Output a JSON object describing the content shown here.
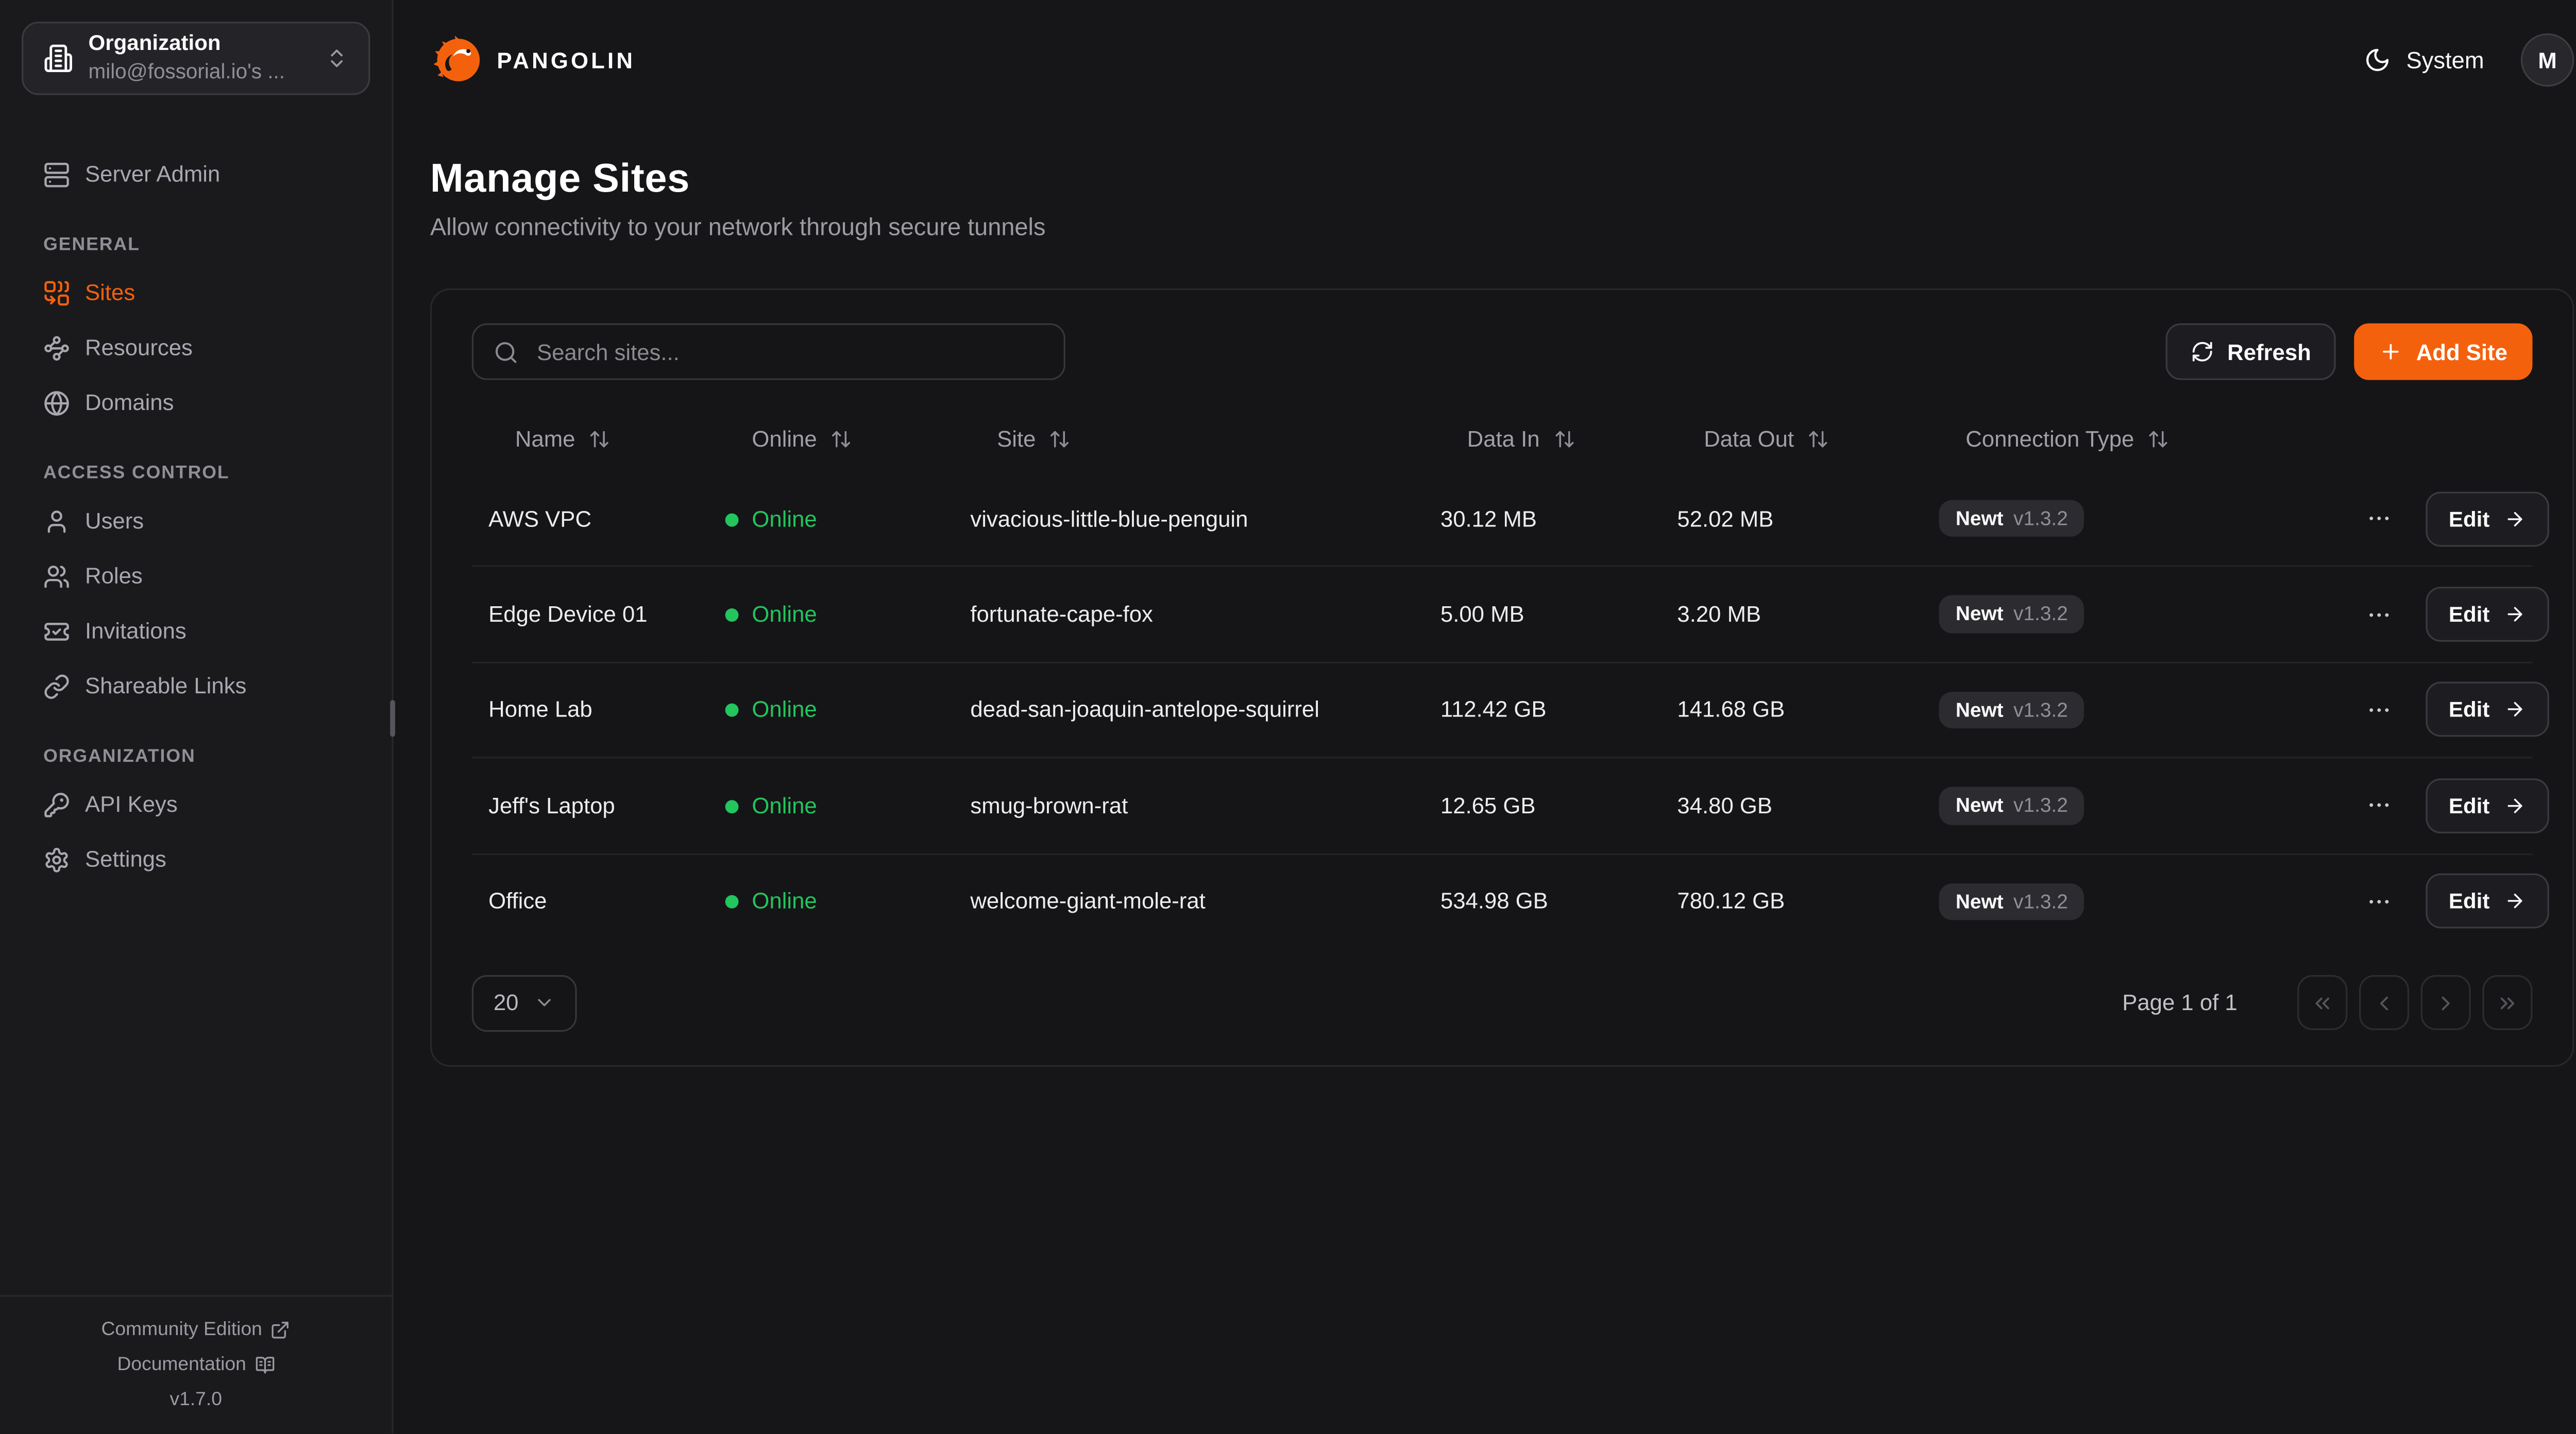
{
  "header": {
    "brand": "PANGOLIN",
    "theme_label": "System",
    "avatar_initial": "M"
  },
  "org_selector": {
    "label": "Organization",
    "value": "milo@fossorial.io's ...",
    "icon": "building-icon",
    "chevrons_icon": "chevrons-up-down-icon"
  },
  "sidebar": {
    "standalone": {
      "label": "Server Admin",
      "icon": "server-icon",
      "active": false
    },
    "sections": [
      {
        "label": "GENERAL",
        "items": [
          {
            "label": "Sites",
            "icon": "combine-icon",
            "active": true
          },
          {
            "label": "Resources",
            "icon": "waypoints-icon",
            "active": false
          },
          {
            "label": "Domains",
            "icon": "globe-icon",
            "active": false
          }
        ]
      },
      {
        "label": "ACCESS CONTROL",
        "items": [
          {
            "label": "Users",
            "icon": "user-icon",
            "active": false
          },
          {
            "label": "Roles",
            "icon": "users-icon",
            "active": false
          },
          {
            "label": "Invitations",
            "icon": "ticket-check-icon",
            "active": false
          },
          {
            "label": "Shareable Links",
            "icon": "link-icon",
            "active": false
          }
        ]
      },
      {
        "label": "ORGANIZATION",
        "items": [
          {
            "label": "API Keys",
            "icon": "key-round-icon",
            "active": false
          },
          {
            "label": "Settings",
            "icon": "settings-icon",
            "active": false
          }
        ]
      }
    ],
    "footer": {
      "community_edition": "Community Edition",
      "community_icon": "external-link-icon",
      "documentation": "Documentation",
      "documentation_icon": "book-open-icon",
      "version": "v1.7.0"
    }
  },
  "page": {
    "title": "Manage Sites",
    "subtitle": "Allow connectivity to your network through secure tunnels"
  },
  "toolbar": {
    "search_placeholder": "Search sites...",
    "refresh_label": "Refresh",
    "add_site_label": "Add Site"
  },
  "table": {
    "sort_icon": "arrow-up-down-icon",
    "columns": [
      {
        "label": "Name"
      },
      {
        "label": "Online"
      },
      {
        "label": "Site"
      },
      {
        "label": "Data In"
      },
      {
        "label": "Data Out"
      },
      {
        "label": "Connection Type"
      }
    ],
    "rows": [
      {
        "name": "AWS VPC",
        "status": "Online",
        "site": "vivacious-little-blue-penguin",
        "data_in": "30.12 MB",
        "data_out": "52.02 MB",
        "connection_type": "Newt",
        "connection_version": "v1.3.2",
        "edit_label": "Edit"
      },
      {
        "name": "Edge Device 01",
        "status": "Online",
        "site": "fortunate-cape-fox",
        "data_in": "5.00 MB",
        "data_out": "3.20 MB",
        "connection_type": "Newt",
        "connection_version": "v1.3.2",
        "edit_label": "Edit"
      },
      {
        "name": "Home Lab",
        "status": "Online",
        "site": "dead-san-joaquin-antelope-squirrel",
        "data_in": "112.42 GB",
        "data_out": "141.68 GB",
        "connection_type": "Newt",
        "connection_version": "v1.3.2",
        "edit_label": "Edit"
      },
      {
        "name": "Jeff's Laptop",
        "status": "Online",
        "site": "smug-brown-rat",
        "data_in": "12.65 GB",
        "data_out": "34.80 GB",
        "connection_type": "Newt",
        "connection_version": "v1.3.2",
        "edit_label": "Edit"
      },
      {
        "name": "Office",
        "status": "Online",
        "site": "welcome-giant-mole-rat",
        "data_in": "534.98 GB",
        "data_out": "780.12 GB",
        "connection_type": "Newt",
        "connection_version": "v1.3.2",
        "edit_label": "Edit"
      }
    ]
  },
  "pagination": {
    "page_size": "20",
    "page_info": "Page 1 of 1"
  },
  "colors": {
    "accent": "#f4610d",
    "online_green": "#22c55e",
    "sidebar_bg": "#1a1a1d",
    "card_bg": "#151517"
  }
}
